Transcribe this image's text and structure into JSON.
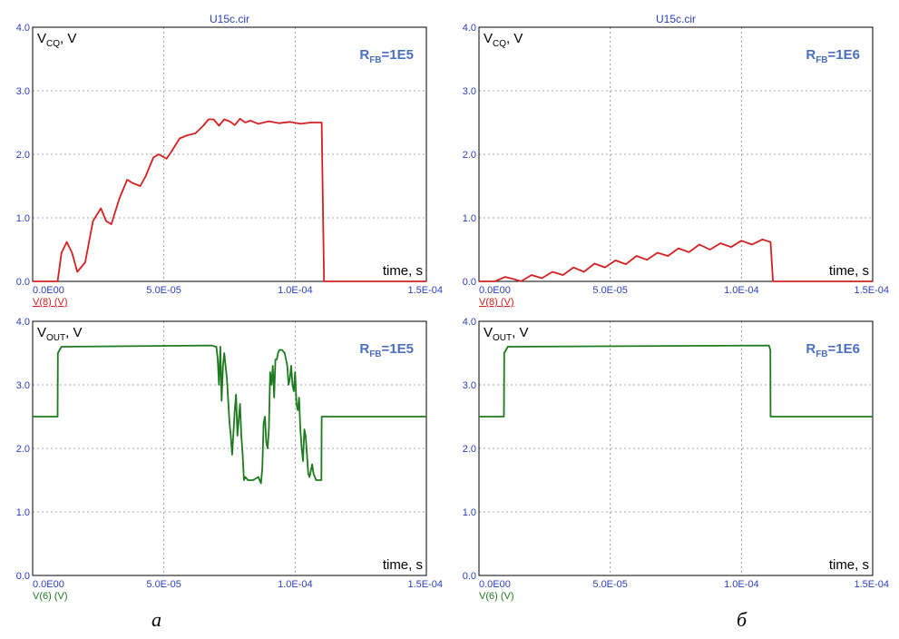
{
  "captions": [
    "а",
    "б"
  ],
  "chart_data": [
    {
      "type": "line",
      "title": "U15c.cir",
      "ylabel_main": "V",
      "ylabel_sub": "CQ",
      "ylabel_suffix": ", V",
      "xlabel": "time, s",
      "annotation": {
        "main": "R",
        "sub": "FB",
        "suffix": "=1E5"
      },
      "x_ticks": [
        "0.0E00",
        "5.0E-05",
        "1.0E-04",
        "1.5E-04"
      ],
      "y_ticks": [
        "0.0",
        "1.0",
        "2.0",
        "3.0",
        "4.0"
      ],
      "xlim": [
        0,
        0.00015
      ],
      "ylim": [
        0,
        4
      ],
      "grid": true,
      "series": [
        {
          "name": "V(8) (V)",
          "color": "#d42020",
          "x": [
            0,
            9.5e-06,
            1.1e-05,
            1.3e-05,
            1.5e-05,
            1.7e-05,
            2e-05,
            2.3e-05,
            2.6e-05,
            2.8e-05,
            3e-05,
            3.3e-05,
            3.6e-05,
            3.8e-05,
            4.1e-05,
            4.3e-05,
            4.6e-05,
            4.8e-05,
            5.1e-05,
            5.3e-05,
            5.6e-05,
            5.9e-05,
            6.2e-05,
            6.5e-05,
            6.7e-05,
            6.9e-05,
            7.1e-05,
            7.3e-05,
            7.5e-05,
            7.7e-05,
            7.9e-05,
            8.1e-05,
            8.3e-05,
            8.6e-05,
            9e-05,
            9.4e-05,
            9.8e-05,
            0.000102,
            0.000106,
            0.00011,
            0.0001101,
            0.000111,
            0.00015
          ],
          "y": [
            0,
            0,
            0.45,
            0.62,
            0.45,
            0.15,
            0.3,
            0.95,
            1.15,
            0.95,
            0.9,
            1.3,
            1.6,
            1.55,
            1.5,
            1.65,
            1.95,
            2.0,
            1.93,
            2.05,
            2.25,
            2.3,
            2.33,
            2.45,
            2.55,
            2.55,
            2.45,
            2.55,
            2.52,
            2.46,
            2.56,
            2.5,
            2.53,
            2.48,
            2.52,
            2.49,
            2.51,
            2.48,
            2.5,
            2.5,
            2.5,
            0,
            0
          ]
        }
      ]
    },
    {
      "type": "line",
      "title": "U15c.cir",
      "ylabel_main": "V",
      "ylabel_sub": "CQ",
      "ylabel_suffix": ", V",
      "xlabel": "time, s",
      "annotation": {
        "main": "R",
        "sub": "FB",
        "suffix": "=1E6"
      },
      "x_ticks": [
        "0.0E00",
        "5.0E-05",
        "1.0E-04",
        "1.5E-04"
      ],
      "y_ticks": [
        "0.0",
        "1.0",
        "2.0",
        "3.0",
        "4.0"
      ],
      "xlim": [
        0,
        0.00015
      ],
      "ylim": [
        0,
        4
      ],
      "grid": true,
      "series": [
        {
          "name": "V(8) (V)",
          "color": "#d42020",
          "x": [
            0,
            6e-06,
            1e-05,
            1.3e-05,
            1.6e-05,
            2e-05,
            2.4e-05,
            2.8e-05,
            3.2e-05,
            3.6e-05,
            4e-05,
            4.4e-05,
            4.8e-05,
            5.2e-05,
            5.6e-05,
            6e-05,
            6.4e-05,
            6.8e-05,
            7.2e-05,
            7.6e-05,
            8e-05,
            8.4e-05,
            8.8e-05,
            9.2e-05,
            9.6e-05,
            0.0001,
            0.000104,
            0.000108,
            0.000111,
            0.0001111,
            0.000112,
            0.00015
          ],
          "y": [
            0,
            0,
            0.07,
            0.04,
            0,
            0.1,
            0.05,
            0.15,
            0.1,
            0.22,
            0.15,
            0.28,
            0.22,
            0.33,
            0.27,
            0.4,
            0.34,
            0.45,
            0.4,
            0.52,
            0.46,
            0.58,
            0.5,
            0.6,
            0.54,
            0.64,
            0.58,
            0.66,
            0.62,
            0.62,
            0,
            0
          ]
        }
      ]
    },
    {
      "type": "line",
      "title": "",
      "ylabel_main": "V",
      "ylabel_sub": "OUT",
      "ylabel_suffix": ", V",
      "xlabel": "time, s",
      "annotation": {
        "main": "R",
        "sub": "FB",
        "suffix": "=1E5"
      },
      "x_ticks": [
        "0.0E00",
        "5.0E-05",
        "1.0E-04",
        "1.5E-04"
      ],
      "y_ticks": [
        "0.0",
        "1.0",
        "2.0",
        "3.0",
        "4.0"
      ],
      "xlim": [
        0,
        0.00015
      ],
      "ylim": [
        0,
        4
      ],
      "grid": true,
      "series": [
        {
          "name": "V(6) (V)",
          "color": "#1e7a1e",
          "x": [
            0,
            9.5e-06,
            9.6e-06,
            1.1e-05,
            6.8e-05,
            7e-05,
            7.05e-05,
            7.1e-05,
            7.15e-05,
            7.2e-05,
            7.25e-05,
            7.3e-05,
            7.4e-05,
            7.5e-05,
            7.55e-05,
            7.6e-05,
            7.7e-05,
            7.75e-05,
            7.8e-05,
            7.9e-05,
            7.95e-05,
            8e-05,
            8.05e-05,
            8.1e-05,
            8.2e-05,
            8.4e-05,
            8.6e-05,
            8.7e-05,
            8.75e-05,
            8.8e-05,
            8.85e-05,
            8.9e-05,
            8.95e-05,
            9e-05,
            9.05e-05,
            9.1e-05,
            9.15e-05,
            9.2e-05,
            9.25e-05,
            9.3e-05,
            9.35e-05,
            9.4e-05,
            9.5e-05,
            9.6e-05,
            9.7e-05,
            9.75e-05,
            9.8e-05,
            9.85e-05,
            9.9e-05,
            9.95e-05,
            0.0001,
            0.0001005,
            0.000101,
            0.0001015,
            0.000102,
            0.0001025,
            0.000103,
            0.0001035,
            0.000104,
            0.0001045,
            0.000105,
            0.0001055,
            0.000106,
            0.0001065,
            0.000107,
            0.000108,
            0.000109,
            0.00011,
            0.0001101,
            0.000111,
            0.00015
          ],
          "y": [
            2.5,
            2.5,
            3.5,
            3.6,
            3.62,
            3.6,
            3.4,
            3.0,
            3.6,
            2.75,
            3.3,
            3.5,
            3.1,
            2.4,
            2.2,
            1.9,
            2.6,
            2.85,
            2.2,
            2.7,
            2.2,
            1.9,
            1.5,
            1.55,
            1.5,
            1.5,
            1.55,
            1.45,
            1.7,
            2.4,
            2.5,
            2.1,
            2.0,
            2.3,
            3.2,
            3.0,
            3.3,
            2.8,
            3.4,
            3.4,
            3.5,
            3.55,
            3.55,
            3.5,
            3.3,
            3.0,
            3.1,
            3.3,
            3.0,
            2.9,
            3.2,
            2.7,
            2.6,
            2.8,
            2.3,
            2.0,
            1.8,
            2.3,
            2.2,
            1.9,
            1.6,
            1.55,
            1.65,
            1.75,
            1.6,
            1.5,
            1.5,
            1.5,
            2.5,
            2.5,
            2.5
          ]
        }
      ]
    },
    {
      "type": "line",
      "title": "",
      "ylabel_main": "V",
      "ylabel_sub": "OUT",
      "ylabel_suffix": ", V",
      "xlabel": "time, s",
      "annotation": {
        "main": "R",
        "sub": "FB",
        "suffix": "=1E6"
      },
      "x_ticks": [
        "0.0E00",
        "5.0E-05",
        "1.0E-04",
        "1.5E-04"
      ],
      "y_ticks": [
        "0.0",
        "1.0",
        "2.0",
        "3.0",
        "4.0"
      ],
      "xlim": [
        0,
        0.00015
      ],
      "ylim": [
        0,
        4
      ],
      "grid": true,
      "series": [
        {
          "name": "V(6) (V)",
          "color": "#1e7a1e",
          "x": [
            0,
            9.5e-06,
            9.6e-06,
            1.1e-05,
            0.0001105,
            0.000111,
            0.0001111,
            0.000112,
            0.00015
          ],
          "y": [
            2.5,
            2.5,
            3.5,
            3.6,
            3.62,
            3.55,
            2.5,
            2.5,
            2.5
          ]
        }
      ]
    }
  ]
}
